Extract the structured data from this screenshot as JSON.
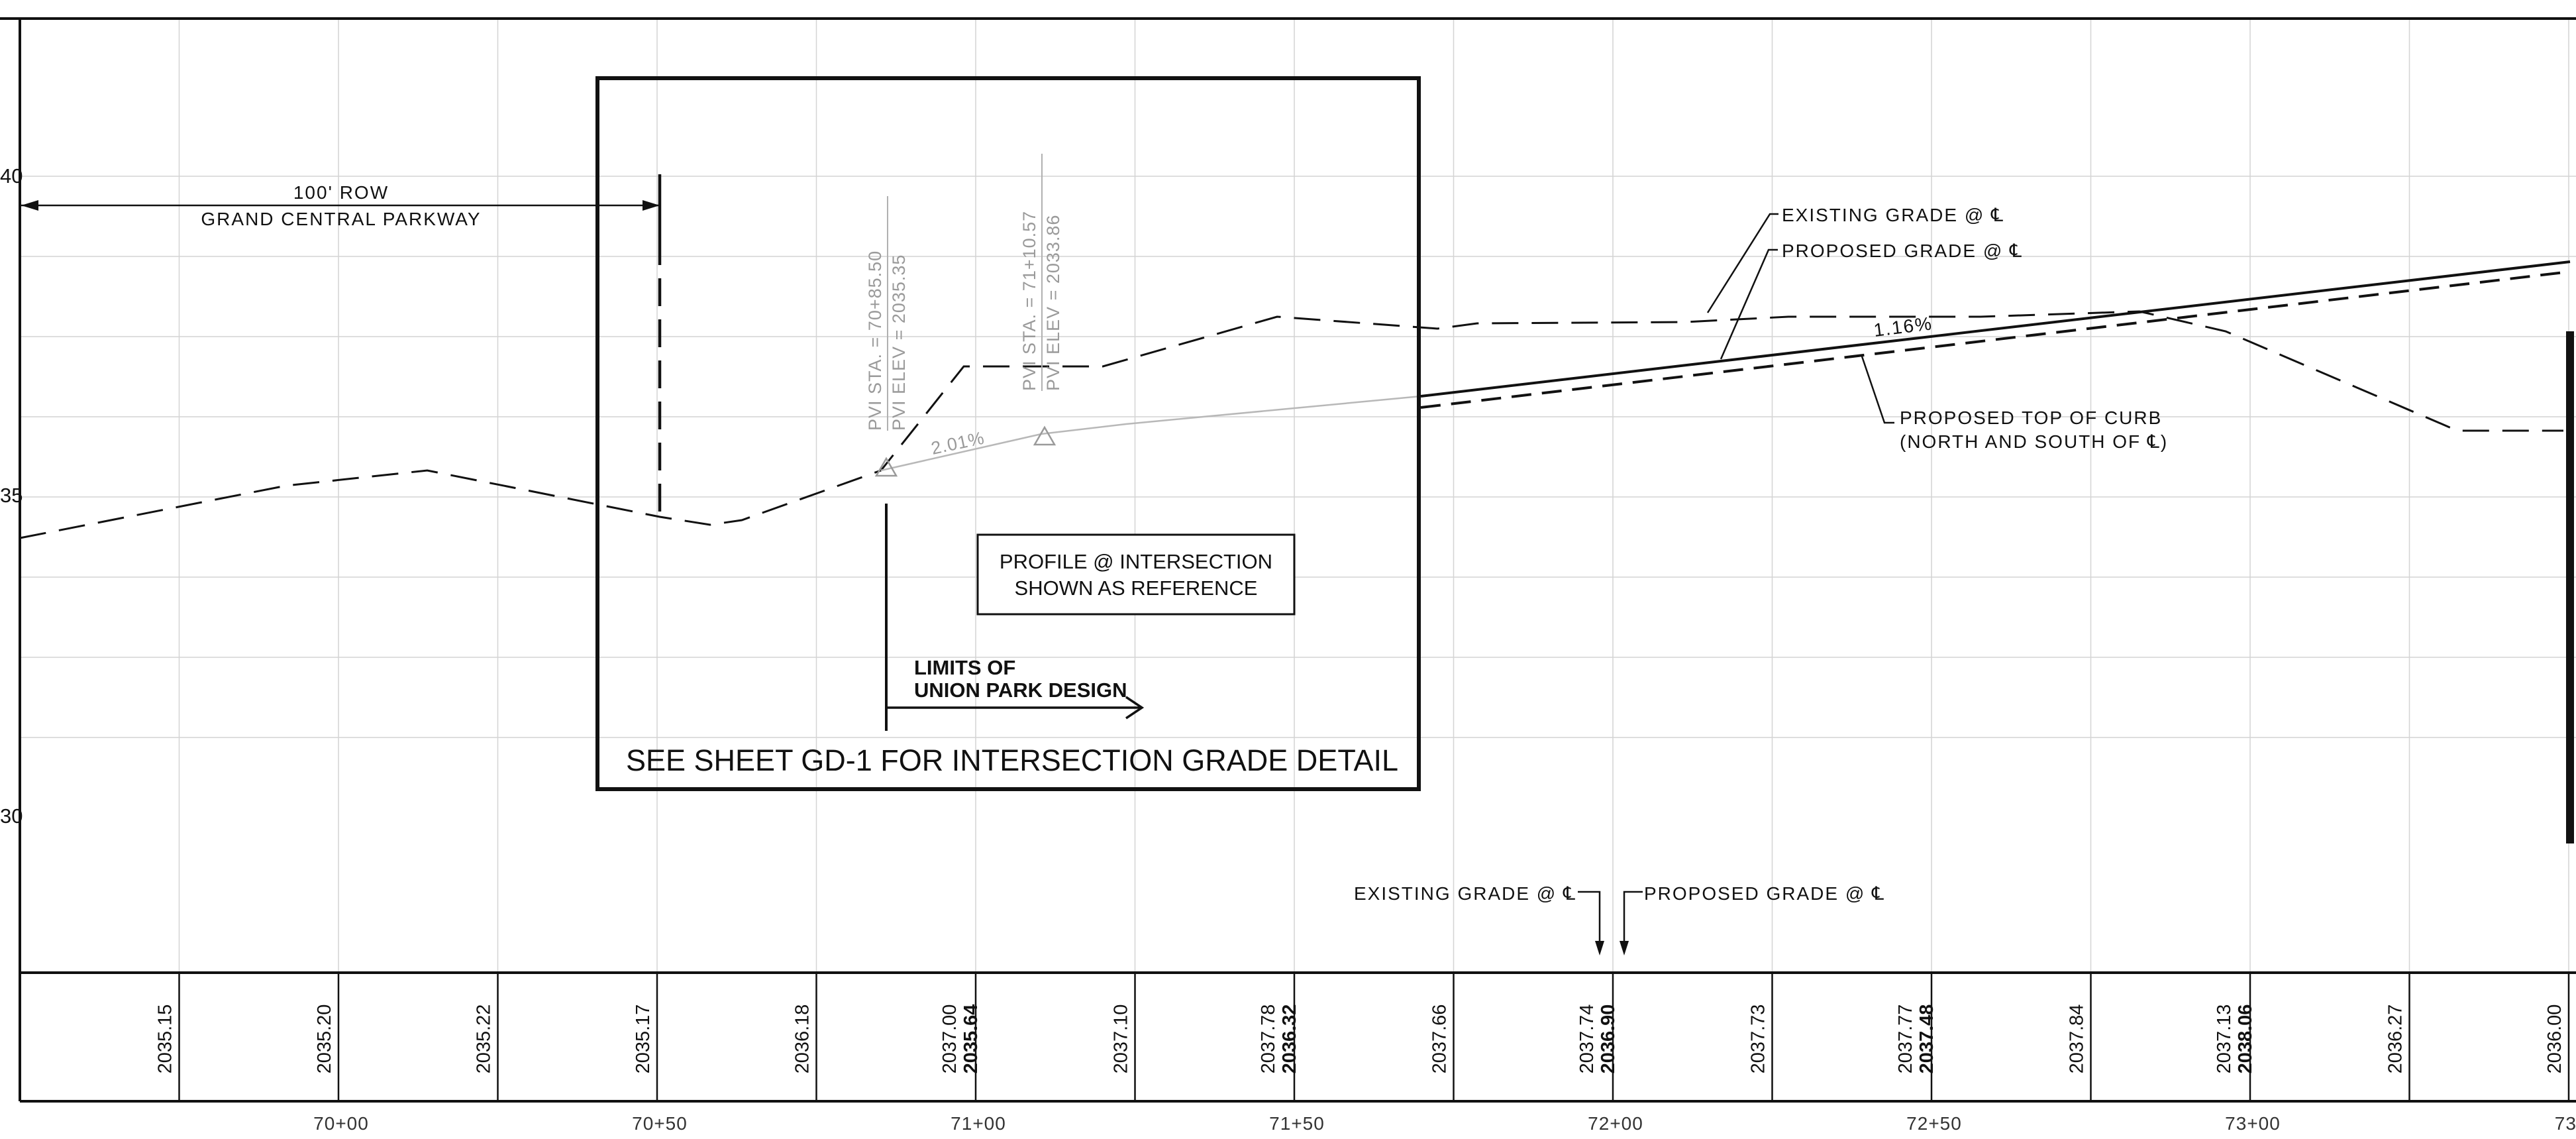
{
  "elevation_labels": [
    "40",
    "35",
    "30"
  ],
  "row_label": {
    "dimension": "100' ROW",
    "road": "GRAND CENTRAL PARKWAY"
  },
  "pvi": [
    {
      "sta": "PVI STA. = 70+85.50",
      "elev": "PVI ELEV = 2035.35"
    },
    {
      "sta": "PVI STA. = 71+10.57",
      "elev": "PVI ELEV = 2033.86"
    }
  ],
  "grades": {
    "left": "2.01%",
    "right": "1.16%"
  },
  "reference_box": {
    "line1": "PROFILE @ INTERSECTION",
    "line2": "SHOWN AS REFERENCE"
  },
  "limits": {
    "line1": "LIMITS OF",
    "line2": "UNION PARK DESIGN"
  },
  "see_sheet": "SEE SHEET GD-1 FOR INTERSECTION GRADE DETAIL",
  "legend": {
    "existing": "EXISTING GRADE @ ℄",
    "proposed": "PROPOSED GRADE @ ℄",
    "curb_line1": "PROPOSED TOP OF CURB",
    "curb_line2": "(NORTH AND SOUTH OF ℄)"
  },
  "bottom_legend": {
    "existing": "EXISTING GRADE @ ℄",
    "proposed": "PROPOSED GRADE @ ℄"
  },
  "elevations": [
    {
      "existing": "2035.15",
      "proposed": ""
    },
    {
      "existing": "2035.20",
      "proposed": ""
    },
    {
      "existing": "2035.22",
      "proposed": ""
    },
    {
      "existing": "2035.17",
      "proposed": ""
    },
    {
      "existing": "2036.18",
      "proposed": ""
    },
    {
      "existing": "2037.00",
      "proposed": "2035.64"
    },
    {
      "existing": "2037.10",
      "proposed": ""
    },
    {
      "existing": "2037.78",
      "proposed": "2036.32"
    },
    {
      "existing": "2037.66",
      "proposed": ""
    },
    {
      "existing": "2037.74",
      "proposed": "2036.90"
    },
    {
      "existing": "2037.73",
      "proposed": ""
    },
    {
      "existing": "2037.77",
      "proposed": "2037.48"
    },
    {
      "existing": "2037.84",
      "proposed": ""
    },
    {
      "existing": "2037.13",
      "proposed": "2038.06"
    },
    {
      "existing": "2036.27",
      "proposed": ""
    },
    {
      "existing": "2036.00",
      "proposed": ""
    }
  ],
  "stations": [
    "70+00",
    "70+50",
    "71+00",
    "71+50",
    "72+00",
    "72+50",
    "73+00",
    "73+"
  ]
}
